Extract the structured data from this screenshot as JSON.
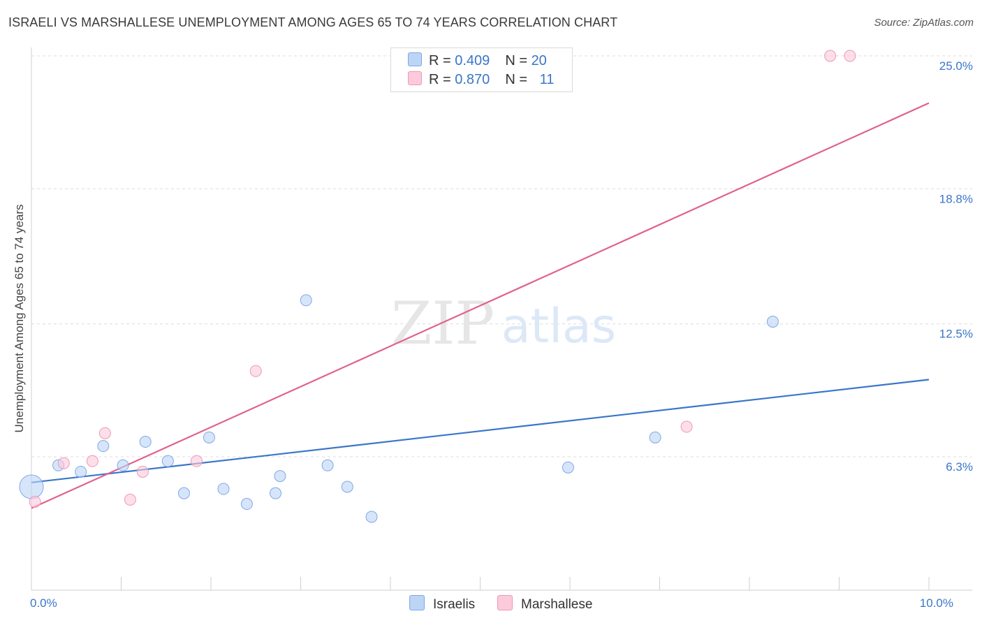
{
  "header": {
    "title": "ISRAELI VS MARSHALLESE UNEMPLOYMENT AMONG AGES 65 TO 74 YEARS CORRELATION CHART",
    "source": "Source: ZipAtlas.com"
  },
  "colors": {
    "blue": "#3a76c8",
    "pink": "#e0628c",
    "blue_fill": "#bcd4f6",
    "pink_fill": "#fbcadb"
  },
  "legend": {
    "rows": [
      {
        "r_label": "R = ",
        "r_value": "0.409",
        "n_label": "N = ",
        "n_value": "20"
      },
      {
        "r_label": "R = ",
        "r_value": "0.870",
        "n_label": "N = ",
        "n_value": "11"
      }
    ]
  },
  "watermark": {
    "zip": "ZIP",
    "atlas": "atlas"
  },
  "chart_data": {
    "type": "scatter",
    "title": "ISRAELI VS MARSHALLESE UNEMPLOYMENT AMONG AGES 65 TO 74 YEARS CORRELATION CHART",
    "xlabel": "",
    "ylabel": "Unemployment Among Ages 65 to 74 years",
    "xlim": [
      0,
      10
    ],
    "ylim": [
      0,
      25.6
    ],
    "x_tick_labels": [
      {
        "value": 0,
        "label": "0.0%"
      },
      {
        "value": 10,
        "label": "10.0%"
      }
    ],
    "y_tick_labels": [
      {
        "value": 6.3,
        "label": "6.3%"
      },
      {
        "value": 12.5,
        "label": "12.5%"
      },
      {
        "value": 18.8,
        "label": "18.8%"
      },
      {
        "value": 25.0,
        "label": "25.0%"
      }
    ],
    "series": [
      {
        "name": "Israelis",
        "color": "#3a76c8",
        "points": [
          {
            "x": 0.0,
            "y": 4.9,
            "big": true
          },
          {
            "x": 0.3,
            "y": 5.9
          },
          {
            "x": 0.55,
            "y": 5.6
          },
          {
            "x": 0.8,
            "y": 6.8
          },
          {
            "x": 1.02,
            "y": 5.9
          },
          {
            "x": 1.27,
            "y": 7.0
          },
          {
            "x": 1.52,
            "y": 6.1
          },
          {
            "x": 1.7,
            "y": 4.6
          },
          {
            "x": 1.98,
            "y": 7.2
          },
          {
            "x": 2.14,
            "y": 4.8
          },
          {
            "x": 2.4,
            "y": 4.1
          },
          {
            "x": 2.72,
            "y": 4.6
          },
          {
            "x": 2.77,
            "y": 5.4
          },
          {
            "x": 3.06,
            "y": 13.6
          },
          {
            "x": 3.3,
            "y": 5.9
          },
          {
            "x": 3.52,
            "y": 4.9
          },
          {
            "x": 3.79,
            "y": 3.5
          },
          {
            "x": 5.98,
            "y": 5.8
          },
          {
            "x": 6.95,
            "y": 7.2
          },
          {
            "x": 8.26,
            "y": 12.6
          }
        ],
        "trend": {
          "x": [
            0,
            10
          ],
          "y": [
            5.1,
            9.9
          ]
        }
      },
      {
        "name": "Marshallese",
        "color": "#e0628c",
        "points": [
          {
            "x": 0.04,
            "y": 4.2
          },
          {
            "x": 0.36,
            "y": 6.0
          },
          {
            "x": 0.68,
            "y": 6.1
          },
          {
            "x": 0.82,
            "y": 7.4
          },
          {
            "x": 1.1,
            "y": 4.3
          },
          {
            "x": 1.24,
            "y": 5.6
          },
          {
            "x": 1.84,
            "y": 6.1
          },
          {
            "x": 2.5,
            "y": 10.3
          },
          {
            "x": 7.3,
            "y": 7.7
          },
          {
            "x": 8.9,
            "y": 25.0
          },
          {
            "x": 9.12,
            "y": 25.0
          }
        ],
        "trend": {
          "x": [
            0,
            10
          ],
          "y": [
            3.9,
            22.8
          ]
        }
      }
    ]
  }
}
